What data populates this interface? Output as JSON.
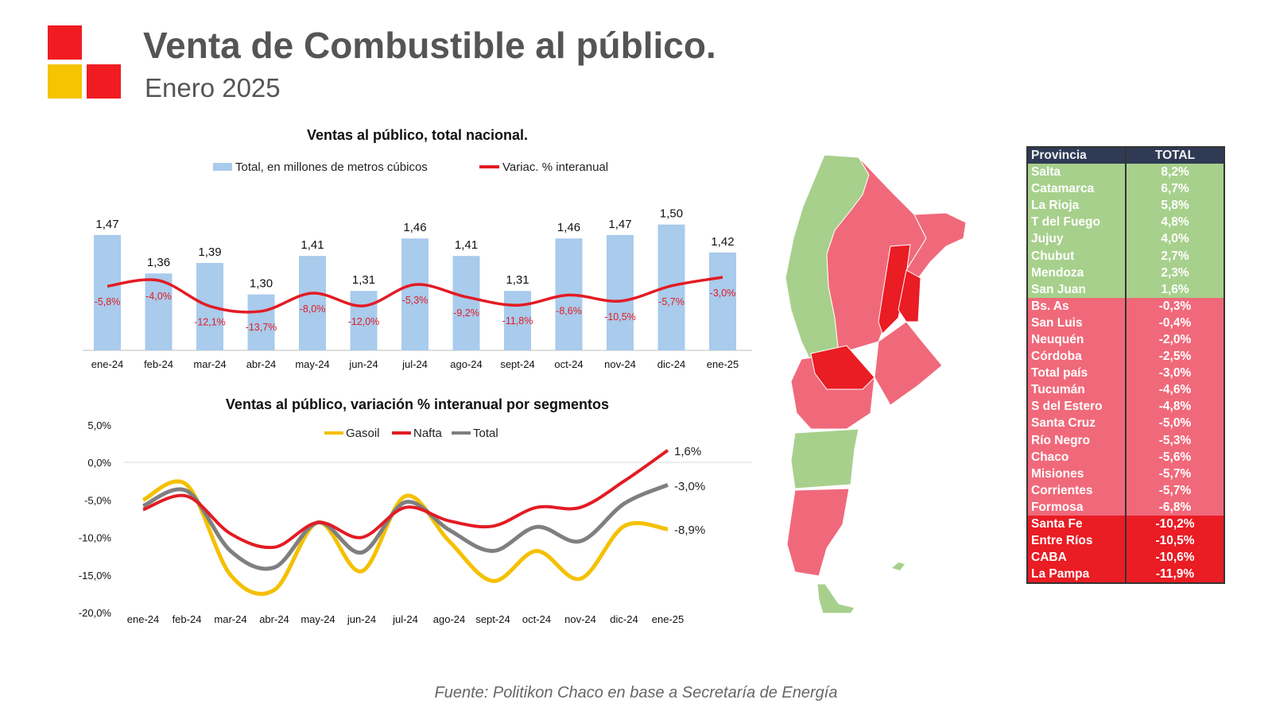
{
  "header": {
    "title": "Venta de Combustible al público.",
    "subtitle": "Enero 2025"
  },
  "colors": {
    "bar": "#a9cbec",
    "red_line": "#e31b23",
    "gasoil": "#f5c000",
    "nafta": "#e31b23",
    "total_grey": "#7f7f7f",
    "map_green": "#a7d08c",
    "map_pink": "#f0697a",
    "map_red": "#ea1c24",
    "table_header": "#2f3b55"
  },
  "chart_data": [
    {
      "type": "bar",
      "title": "Ventas al público, total nacional.",
      "categories": [
        "ene-24",
        "feb-24",
        "mar-24",
        "abr-24",
        "may-24",
        "jun-24",
        "jul-24",
        "ago-24",
        "sept-24",
        "oct-24",
        "nov-24",
        "dic-24",
        "ene-25"
      ],
      "series": [
        {
          "name": "Total, en millones de metros cúbicos",
          "kind": "bar",
          "values": [
            1.47,
            1.36,
            1.39,
            1.3,
            1.41,
            1.31,
            1.46,
            1.41,
            1.31,
            1.46,
            1.47,
            1.5,
            1.42
          ],
          "labels": [
            "1,47",
            "1,36",
            "1,39",
            "1,30",
            "1,41",
            "1,31",
            "1,46",
            "1,41",
            "1,31",
            "1,46",
            "1,47",
            "1,50",
            "1,42"
          ]
        },
        {
          "name": "Variac. % interanual",
          "kind": "line",
          "values": [
            -5.8,
            -4.0,
            -12.1,
            -13.7,
            -8.0,
            -12.0,
            -5.3,
            -9.2,
            -11.8,
            -8.6,
            -10.5,
            -5.7,
            -3.0
          ],
          "labels": [
            "-5,8%",
            "-4,0%",
            "-12,1%",
            "-13,7%",
            "-8,0%",
            "-12,0%",
            "-5,3%",
            "-9,2%",
            "-11,8%",
            "-8,6%",
            "-10,5%",
            "-5,7%",
            "-3,0%"
          ]
        }
      ]
    },
    {
      "type": "line",
      "title": "Ventas al público, variación % interanual por segmentos",
      "categories": [
        "ene-24",
        "feb-24",
        "mar-24",
        "abr-24",
        "may-24",
        "jun-24",
        "jul-24",
        "ago-24",
        "sept-24",
        "oct-24",
        "nov-24",
        "dic-24",
        "ene-25"
      ],
      "ylim": [
        -20,
        5
      ],
      "yticks": [
        "5,0%",
        "0,0%",
        "-5,0%",
        "-10,0%",
        "-15,0%",
        "-20,0%"
      ],
      "series": [
        {
          "name": "Gasoil",
          "values": [
            -5.0,
            -3.0,
            -15.0,
            -17.0,
            -8.0,
            -14.5,
            -4.5,
            -10.5,
            -15.8,
            -11.8,
            -15.5,
            -8.5,
            -8.9
          ]
        },
        {
          "name": "Nafta",
          "values": [
            -6.3,
            -4.5,
            -9.5,
            -11.3,
            -8.0,
            -10.0,
            -6.0,
            -7.8,
            -8.5,
            -6.0,
            -6.0,
            -2.5,
            1.6
          ]
        },
        {
          "name": "Total",
          "values": [
            -5.8,
            -3.8,
            -11.8,
            -14.0,
            -8.0,
            -12.0,
            -5.3,
            -9.0,
            -11.8,
            -8.6,
            -10.5,
            -5.5,
            -3.0
          ]
        }
      ],
      "end_labels": [
        "-8,9%",
        "1,6%",
        "-3,0%"
      ]
    }
  ],
  "table": {
    "headers": [
      "Provincia",
      "TOTAL"
    ],
    "rows": [
      {
        "name": "Salta",
        "value": "8,2%",
        "cls": "pos"
      },
      {
        "name": "Catamarca",
        "value": "6,7%",
        "cls": "pos"
      },
      {
        "name": "La Rioja",
        "value": "5,8%",
        "cls": "pos"
      },
      {
        "name": "T del Fuego",
        "value": "4,8%",
        "cls": "pos"
      },
      {
        "name": "Jujuy",
        "value": "4,0%",
        "cls": "pos"
      },
      {
        "name": "Chubut",
        "value": "2,7%",
        "cls": "pos"
      },
      {
        "name": "Mendoza",
        "value": "2,3%",
        "cls": "pos"
      },
      {
        "name": "San Juan",
        "value": "1,6%",
        "cls": "pos"
      },
      {
        "name": "Bs. As",
        "value": "-0,3%",
        "cls": "mid"
      },
      {
        "name": "San Luis",
        "value": "-0,4%",
        "cls": "mid"
      },
      {
        "name": "Neuquén",
        "value": "-2,0%",
        "cls": "mid"
      },
      {
        "name": "Córdoba",
        "value": "-2,5%",
        "cls": "mid"
      },
      {
        "name": "Total país",
        "value": "-3,0%",
        "cls": "mid"
      },
      {
        "name": "Tucumán",
        "value": "-4,6%",
        "cls": "mid"
      },
      {
        "name": "S del Estero",
        "value": "-4,8%",
        "cls": "mid"
      },
      {
        "name": "Santa Cruz",
        "value": "-5,0%",
        "cls": "mid"
      },
      {
        "name": "Río Negro",
        "value": "-5,3%",
        "cls": "mid"
      },
      {
        "name": "Chaco",
        "value": "-5,6%",
        "cls": "mid"
      },
      {
        "name": "Misiones",
        "value": "-5,7%",
        "cls": "mid"
      },
      {
        "name": "Corrientes",
        "value": "-5,7%",
        "cls": "mid"
      },
      {
        "name": "Formosa",
        "value": "-6,8%",
        "cls": "mid"
      },
      {
        "name": "Santa Fe",
        "value": "-10,2%",
        "cls": "neg"
      },
      {
        "name": "Entre Ríos",
        "value": "-10,5%",
        "cls": "neg"
      },
      {
        "name": "CABA",
        "value": "-10,6%",
        "cls": "neg"
      },
      {
        "name": "La Pampa",
        "value": "-11,9%",
        "cls": "neg"
      }
    ]
  },
  "footer": {
    "source": "Fuente: Politikon Chaco en base a Secretaría de Energía"
  }
}
